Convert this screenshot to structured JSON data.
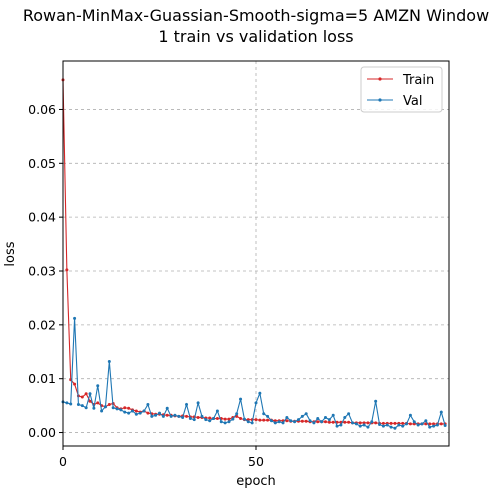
{
  "chart_data": {
    "type": "line",
    "title": [
      "Rowan-MinMax-Guassian-Smooth-sigma=5 AMZN Window",
      "1 train vs validation loss"
    ],
    "xlabel": "epoch",
    "ylabel": "loss",
    "xlim": [
      0,
      100
    ],
    "ylim": [
      -0.0025,
      0.069
    ],
    "xticks": [
      0,
      50
    ],
    "yticks": [
      0.0,
      0.01,
      0.02,
      0.03,
      0.04,
      0.05,
      0.06
    ],
    "ytick_labels": [
      "0.00",
      "0.01",
      "0.02",
      "0.03",
      "0.04",
      "0.05",
      "0.06"
    ],
    "grid": true,
    "legend_position": "upper-right",
    "series": [
      {
        "name": "Train",
        "color": "#d62728",
        "x": [
          0,
          1,
          2,
          3,
          4,
          5,
          6,
          7,
          8,
          9,
          10,
          11,
          12,
          13,
          14,
          15,
          16,
          17,
          18,
          19,
          20,
          21,
          22,
          23,
          24,
          25,
          26,
          27,
          28,
          29,
          30,
          31,
          32,
          33,
          34,
          35,
          36,
          37,
          38,
          39,
          40,
          41,
          42,
          43,
          44,
          45,
          46,
          47,
          48,
          49,
          50,
          51,
          52,
          53,
          54,
          55,
          56,
          57,
          58,
          59,
          60,
          61,
          62,
          63,
          64,
          65,
          66,
          67,
          68,
          69,
          70,
          71,
          72,
          73,
          74,
          75,
          76,
          77,
          78,
          79,
          80,
          81,
          82,
          83,
          84,
          85,
          86,
          87,
          88,
          89,
          90,
          91,
          92,
          93,
          94,
          95,
          96,
          97,
          98,
          99
        ],
        "y": [
          0.0655,
          0.0302,
          0.0098,
          0.009,
          0.0068,
          0.0066,
          0.0072,
          0.0058,
          0.0052,
          0.0055,
          0.005,
          0.0048,
          0.0052,
          0.0054,
          0.0046,
          0.0044,
          0.0046,
          0.0045,
          0.0042,
          0.004,
          0.0038,
          0.004,
          0.0036,
          0.0035,
          0.0034,
          0.0034,
          0.0033,
          0.0032,
          0.0032,
          0.0031,
          0.003,
          0.0031,
          0.003,
          0.0029,
          0.0029,
          0.0028,
          0.0028,
          0.0027,
          0.0027,
          0.0026,
          0.0026,
          0.0026,
          0.0025,
          0.0025,
          0.0028,
          0.003,
          0.0026,
          0.0024,
          0.0024,
          0.0024,
          0.0024,
          0.0023,
          0.0023,
          0.0023,
          0.0023,
          0.0022,
          0.0022,
          0.0022,
          0.0022,
          0.0021,
          0.0021,
          0.0021,
          0.0021,
          0.0021,
          0.002,
          0.002,
          0.002,
          0.002,
          0.002,
          0.0019,
          0.0019,
          0.0019,
          0.0019,
          0.0019,
          0.0019,
          0.0018,
          0.0018,
          0.0018,
          0.0018,
          0.0018,
          0.0018,
          0.0018,
          0.0017,
          0.0017,
          0.0017,
          0.0017,
          0.0017,
          0.0017,
          0.0017,
          0.0017,
          0.0016,
          0.0016,
          0.0016,
          0.0016,
          0.0016,
          0.0016,
          0.0016,
          0.0016,
          0.0016,
          0.0016
        ]
      },
      {
        "name": "Val",
        "color": "#1f77b4",
        "x": [
          0,
          1,
          2,
          3,
          4,
          5,
          6,
          7,
          8,
          9,
          10,
          11,
          12,
          13,
          14,
          15,
          16,
          17,
          18,
          19,
          20,
          21,
          22,
          23,
          24,
          25,
          26,
          27,
          28,
          29,
          30,
          31,
          32,
          33,
          34,
          35,
          36,
          37,
          38,
          39,
          40,
          41,
          42,
          43,
          44,
          45,
          46,
          47,
          48,
          49,
          50,
          51,
          52,
          53,
          54,
          55,
          56,
          57,
          58,
          59,
          60,
          61,
          62,
          63,
          64,
          65,
          66,
          67,
          68,
          69,
          70,
          71,
          72,
          73,
          74,
          75,
          76,
          77,
          78,
          79,
          80,
          81,
          82,
          83,
          84,
          85,
          86,
          87,
          88,
          89,
          90,
          91,
          92,
          93,
          94,
          95,
          96,
          97,
          98,
          99
        ],
        "y": [
          0.0057,
          0.0055,
          0.0053,
          0.0212,
          0.0052,
          0.005,
          0.0046,
          0.0072,
          0.0045,
          0.0087,
          0.004,
          0.0048,
          0.0132,
          0.0046,
          0.0044,
          0.0042,
          0.0038,
          0.0036,
          0.004,
          0.0034,
          0.0036,
          0.004,
          0.0052,
          0.003,
          0.0032,
          0.0036,
          0.003,
          0.0045,
          0.003,
          0.0032,
          0.003,
          0.0028,
          0.0052,
          0.0026,
          0.0024,
          0.0055,
          0.003,
          0.0024,
          0.0022,
          0.0026,
          0.004,
          0.002,
          0.0018,
          0.002,
          0.0025,
          0.0035,
          0.0062,
          0.0025,
          0.002,
          0.0018,
          0.0055,
          0.0073,
          0.0035,
          0.003,
          0.0022,
          0.0018,
          0.002,
          0.0018,
          0.0028,
          0.0022,
          0.002,
          0.0024,
          0.003,
          0.0035,
          0.0022,
          0.0018,
          0.0026,
          0.002,
          0.0028,
          0.0024,
          0.0032,
          0.0012,
          0.0014,
          0.0028,
          0.0035,
          0.0018,
          0.0016,
          0.0012,
          0.0014,
          0.001,
          0.002,
          0.0058,
          0.0015,
          0.0012,
          0.0014,
          0.001,
          0.0008,
          0.0014,
          0.0012,
          0.0016,
          0.0032,
          0.002,
          0.0014,
          0.0016,
          0.0022,
          0.001,
          0.0012,
          0.0014,
          0.0038,
          0.0013
        ]
      }
    ]
  }
}
